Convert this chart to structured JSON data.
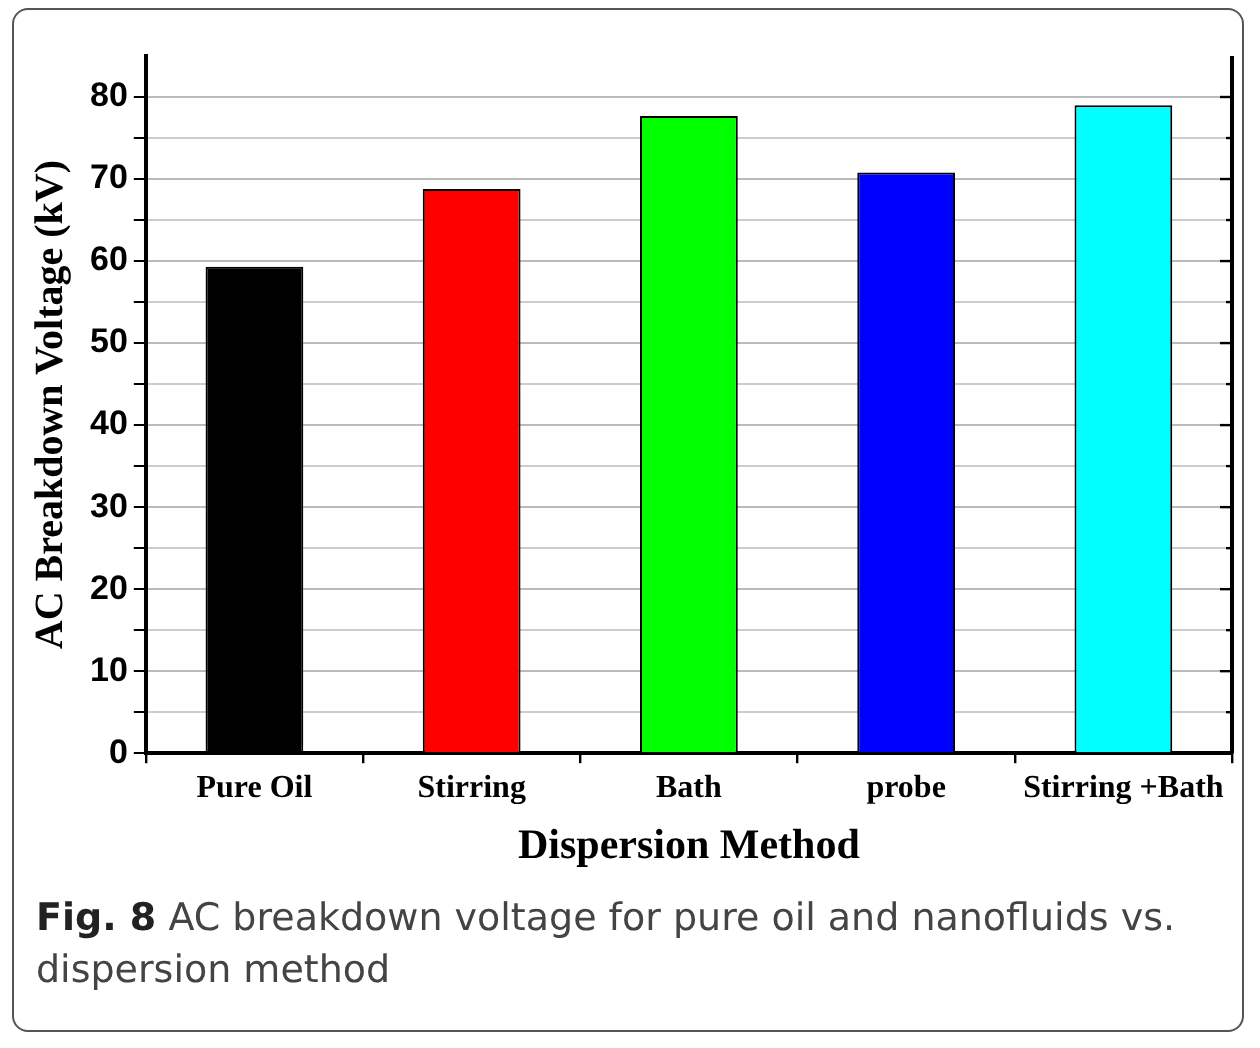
{
  "chart_data": {
    "type": "bar",
    "xlabel": "Dispersion Method",
    "ylabel": "AC Breakdown Voltage (kV)",
    "categories": [
      "Pure Oil",
      "Stirring",
      "Bath",
      "probe",
      "Stirring +Bath"
    ],
    "values": [
      59.3,
      68.8,
      77.7,
      70.8,
      79.0
    ],
    "colors": [
      "#000000",
      "#ff0000",
      "#00ff00",
      "#0000ff",
      "#00ffff"
    ],
    "ylim": [
      0,
      85
    ],
    "yticks": [
      0,
      {
        "value": 5,
        "label": null
      },
      10,
      {
        "value": 15,
        "label": null
      },
      20,
      {
        "value": 25,
        "label": null
      },
      30,
      {
        "value": 35,
        "label": null
      },
      40,
      {
        "value": 45,
        "label": null
      },
      50,
      {
        "value": 55,
        "label": null
      },
      60,
      {
        "value": 65,
        "label": null
      },
      70,
      {
        "value": 75,
        "label": null
      },
      80
    ],
    "grid": "y",
    "legend": false,
    "annotations": [
      "Fig. 8",
      "AC breakdown voltage for pure oil and nanofluids vs. dispersion method"
    ]
  }
}
